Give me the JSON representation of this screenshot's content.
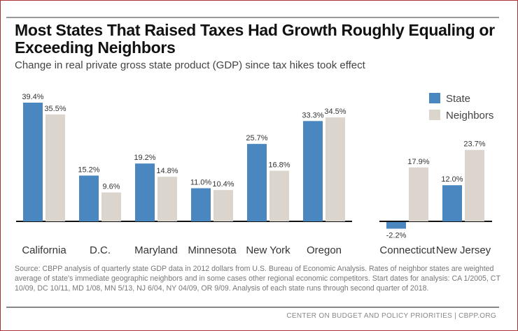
{
  "chart_data": {
    "type": "bar",
    "title": "Most States That Raised Taxes Had Growth Roughly Equaling or Exceeding Neighbors",
    "subtitle": "Change in real private gross state product (GDP) since tax hikes took effect",
    "groups": [
      {
        "categories": [
          "California",
          "D.C.",
          "Maryland",
          "Minnesota",
          "New York",
          "Oregon"
        ],
        "series": [
          {
            "name": "State",
            "values": [
              39.4,
              15.2,
              19.2,
              11.0,
              25.7,
              33.3
            ]
          },
          {
            "name": "Neighbors",
            "values": [
              35.5,
              9.6,
              14.8,
              10.4,
              16.8,
              34.5
            ]
          }
        ]
      },
      {
        "categories": [
          "Connecticut",
          "New Jersey"
        ],
        "series": [
          {
            "name": "State",
            "values": [
              -2.2,
              12.0
            ]
          },
          {
            "name": "Neighbors",
            "values": [
              17.9,
              23.7
            ]
          }
        ]
      }
    ],
    "unit": "%",
    "legend": [
      "State",
      "Neighbors"
    ],
    "legend_placement": "top-right",
    "colors": {
      "State": "#4a87c0",
      "Neighbors": "#dcd5cd"
    },
    "grid": false
  },
  "source": "Source: CBPP analysis of quarterly state GDP data in 2012 dollars from U.S. Bureau of Economic Analysis. Rates of neighbor states are weighted average of state's immediate geographic neighbors and in some cases other regional economic competitors. Start dates for analysis: CA 1/2005, CT 10/09, DC 10/11, MD 1/08, MN 5/13, NJ 6/04, NY 04/09, OR 9/09. Analysis of each state runs through second quarter of 2018.",
  "footer": "CENTER ON BUDGET AND POLICY PRIORITIES | CBPP.ORG"
}
